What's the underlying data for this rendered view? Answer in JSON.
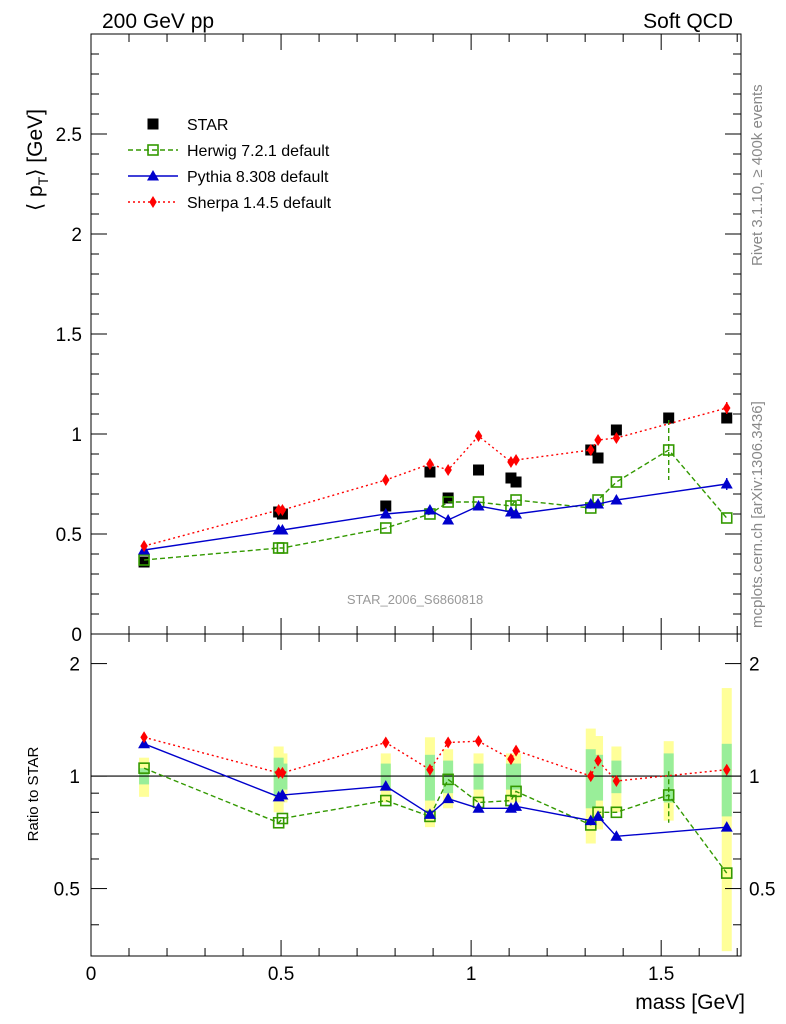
{
  "header": {
    "left_title": "200 GeV pp",
    "right_title": "Soft QCD"
  },
  "side_labels": {
    "rivet": "Rivet 3.1.10, ≥ 400k events",
    "mcplots": "mcplots.cern.ch [arXiv:1306.3436]"
  },
  "chart_data": [
    {
      "type": "scatter",
      "panel": "main",
      "title": "",
      "watermark": "STAR_2006_S6860818",
      "ylabel": "⟨ p_T ⟩ [GeV]",
      "ylabel_parts": {
        "open": "⟨ p",
        "sub": "T",
        "close": "⟩ [GeV]"
      },
      "xlim": [
        0,
        1.71
      ],
      "ylim": [
        0,
        3.0
      ],
      "xticks": [
        0,
        0.5,
        1,
        1.5
      ],
      "xtick_labels": [
        "0",
        "0.5",
        "1",
        "1.5"
      ],
      "yticks": [
        0,
        0.5,
        1,
        1.5,
        2,
        2.5
      ],
      "ytick_labels": [
        "0",
        "0.5",
        "1",
        "1.5",
        "2",
        "2.5"
      ],
      "legend_position": "top-left",
      "series": [
        {
          "name": "STAR",
          "color": "#000000",
          "marker": "square-filled",
          "line": "none",
          "x": [
            0.1396,
            0.4937,
            0.5036,
            0.7755,
            0.8917,
            0.9395,
            1.0195,
            1.1048,
            1.1182,
            1.3148,
            1.3339,
            1.3822,
            1.5198,
            1.6725
          ],
          "y": [
            0.36,
            0.61,
            0.6,
            0.64,
            0.81,
            0.68,
            0.82,
            0.78,
            0.76,
            0.92,
            0.88,
            1.02,
            1.08,
            1.08
          ]
        },
        {
          "name": "Herwig 7.2.1 default",
          "color": "#339900",
          "marker": "square-open",
          "line": "dashed",
          "x": [
            0.1396,
            0.4937,
            0.5036,
            0.7755,
            0.8917,
            0.9395,
            1.0195,
            1.1048,
            1.1182,
            1.3148,
            1.3339,
            1.3822,
            1.5198,
            1.6725
          ],
          "y": [
            0.37,
            0.43,
            0.43,
            0.53,
            0.6,
            0.66,
            0.66,
            0.64,
            0.67,
            0.63,
            0.67,
            0.76,
            0.92,
            0.58
          ],
          "err": [
            0,
            0,
            0,
            0,
            0,
            0,
            0,
            0,
            0,
            0,
            0,
            0,
            0.15,
            0
          ]
        },
        {
          "name": "Pythia 8.308 default",
          "color": "#0000cc",
          "marker": "triangle-filled",
          "line": "solid",
          "x": [
            0.1396,
            0.4937,
            0.5036,
            0.7755,
            0.8917,
            0.9395,
            1.0195,
            1.1048,
            1.1182,
            1.3148,
            1.3339,
            1.3822,
            1.6725
          ],
          "y": [
            0.42,
            0.52,
            0.52,
            0.6,
            0.62,
            0.57,
            0.64,
            0.61,
            0.6,
            0.65,
            0.65,
            0.67,
            0.75
          ],
          "err": [
            0,
            0,
            0,
            0,
            0,
            0,
            0,
            0,
            0,
            0,
            0,
            0,
            0.03
          ]
        },
        {
          "name": "Sherpa 1.4.5 default",
          "color": "#ff0000",
          "marker": "diamond-filled",
          "line": "dotted",
          "x": [
            0.1396,
            0.4937,
            0.5036,
            0.7755,
            0.8917,
            0.9395,
            1.0195,
            1.1048,
            1.1182,
            1.3148,
            1.3339,
            1.3822,
            1.6725
          ],
          "y": [
            0.44,
            0.62,
            0.62,
            0.77,
            0.85,
            0.82,
            0.99,
            0.86,
            0.87,
            0.92,
            0.97,
            0.98,
            1.13
          ],
          "err": [
            0,
            0,
            0,
            0,
            0,
            0,
            0,
            0,
            0,
            0,
            0,
            0,
            0.03
          ]
        }
      ]
    },
    {
      "type": "scatter",
      "panel": "ratio",
      "ylabel": "Ratio to STAR",
      "xlabel": "mass [GeV]",
      "xlim": [
        0,
        1.71
      ],
      "ylim": [
        0.33,
        2.4
      ],
      "reference_line": 1,
      "xticks": [
        0,
        0.5,
        1,
        1.5
      ],
      "xtick_labels": [
        "0",
        "0.5",
        "1",
        "1.5"
      ],
      "yticks": [
        0.5,
        1,
        2
      ],
      "ytick_labels": [
        "0.5",
        "1",
        "2"
      ],
      "uncertainty_bands": {
        "x": [
          0.1396,
          0.4937,
          0.5036,
          0.7755,
          0.8917,
          0.9395,
          1.0195,
          1.1048,
          1.1182,
          1.3148,
          1.3339,
          1.3822,
          1.5198,
          1.6725
        ],
        "stat": [
          0.05,
          0.12,
          0.08,
          0.08,
          0.14,
          0.1,
          0.08,
          0.08,
          0.08,
          0.18,
          0.14,
          0.1,
          0.15,
          0.22
        ],
        "total": [
          0.12,
          0.2,
          0.15,
          0.15,
          0.27,
          0.18,
          0.15,
          0.15,
          0.15,
          0.34,
          0.28,
          0.2,
          0.24,
          0.72
        ],
        "stat_color": "#99ee99",
        "total_color": "#ffff99"
      },
      "series": [
        {
          "name": "Herwig 7.2.1 default",
          "color": "#339900",
          "marker": "square-open",
          "line": "dashed",
          "x": [
            0.1396,
            0.4937,
            0.5036,
            0.7755,
            0.8917,
            0.9395,
            1.0195,
            1.1048,
            1.1182,
            1.3148,
            1.3339,
            1.3822,
            1.5198,
            1.6725
          ],
          "y": [
            1.05,
            0.75,
            0.77,
            0.86,
            0.78,
            0.98,
            0.85,
            0.86,
            0.91,
            0.74,
            0.8,
            0.8,
            0.89,
            0.55
          ],
          "err": [
            0,
            0,
            0,
            0,
            0,
            0,
            0,
            0,
            0,
            0,
            0,
            0,
            0.14,
            0
          ]
        },
        {
          "name": "Pythia 8.308 default",
          "color": "#0000cc",
          "marker": "triangle-filled",
          "line": "solid",
          "x": [
            0.1396,
            0.4937,
            0.5036,
            0.7755,
            0.8917,
            0.9395,
            1.0195,
            1.1048,
            1.1182,
            1.3148,
            1.3339,
            1.3822,
            1.6725
          ],
          "y": [
            1.22,
            0.88,
            0.89,
            0.94,
            0.79,
            0.87,
            0.82,
            0.82,
            0.83,
            0.76,
            0.78,
            0.69,
            0.73
          ]
        },
        {
          "name": "Sherpa 1.4.5 default",
          "color": "#ff0000",
          "marker": "diamond-filled",
          "line": "dotted",
          "x": [
            0.1396,
            0.4937,
            0.5036,
            0.7755,
            0.8917,
            0.9395,
            1.0195,
            1.1048,
            1.1182,
            1.3148,
            1.3339,
            1.3822,
            1.6725
          ],
          "y": [
            1.27,
            1.02,
            1.02,
            1.23,
            1.04,
            1.23,
            1.24,
            1.11,
            1.17,
            1.0,
            1.1,
            0.97,
            1.04
          ]
        }
      ]
    }
  ]
}
